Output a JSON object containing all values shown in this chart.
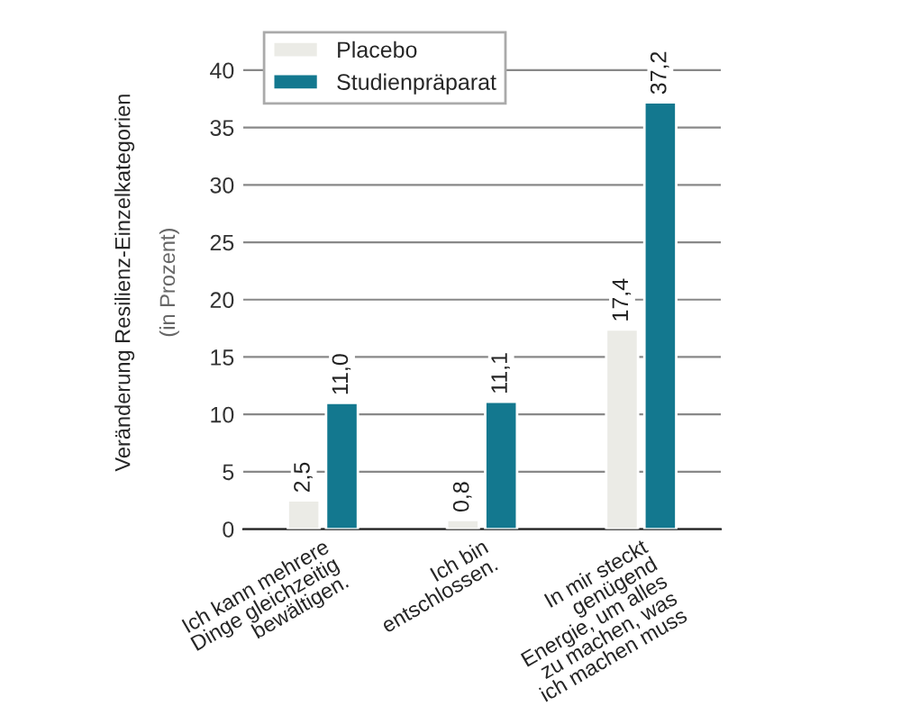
{
  "chart_data": {
    "type": "bar",
    "ylabel": "Veränderung Resilienz-Einzelkategorien",
    "annotations": [
      "(in Prozent)"
    ],
    "categories": [
      "Ich kann mehrere\nDinge gleichzeitig\nbewältigen.",
      "Ich bin\nentschlossen.",
      "In mir steckt\ngenügend\nEnergie, um alles\nzu machen, was\nich machen muss"
    ],
    "series": [
      {
        "name": "Placebo",
        "color": "#ebebe6",
        "values": [
          2.5,
          0.8,
          17.4
        ],
        "value_labels": [
          "2,5",
          "0,8",
          "17,4"
        ]
      },
      {
        "name": "Studienpräparat",
        "color": "#13788f",
        "values": [
          11.0,
          11.1,
          37.2
        ],
        "value_labels": [
          "11,0",
          "11,1",
          "37,2"
        ]
      }
    ],
    "ylim": [
      0,
      43
    ],
    "yticks": [
      0,
      5,
      10,
      15,
      20,
      25,
      30,
      35,
      40
    ],
    "grid": "y",
    "legend": "top left"
  }
}
